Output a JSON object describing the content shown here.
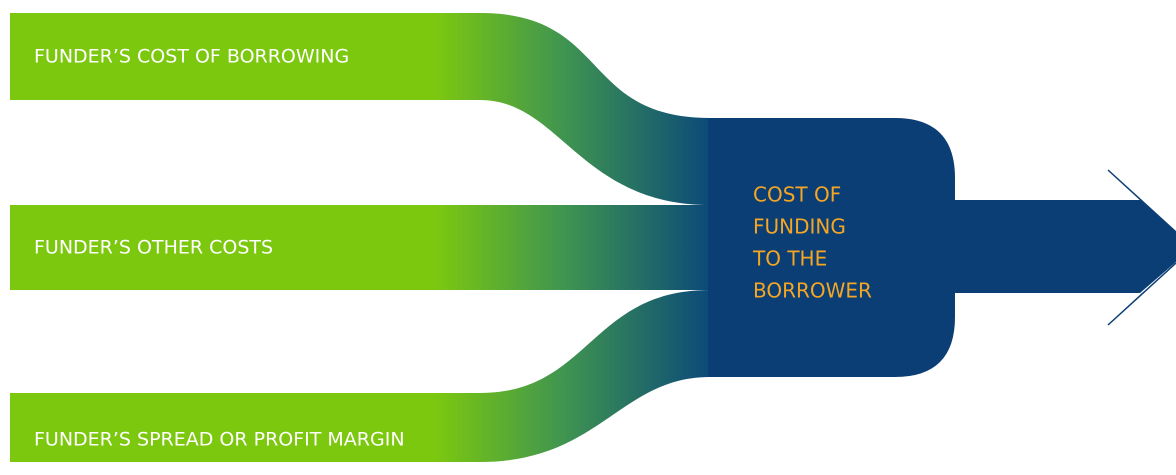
{
  "inputs": [
    "FUNDER’S COST OF BORROWING",
    "FUNDER’S OTHER COSTS",
    "FUNDER’S SPREAD OR PROFIT MARGIN"
  ],
  "output": {
    "lines": [
      "COST OF",
      "FUNDING",
      "TO THE",
      "BORROWER"
    ]
  }
}
